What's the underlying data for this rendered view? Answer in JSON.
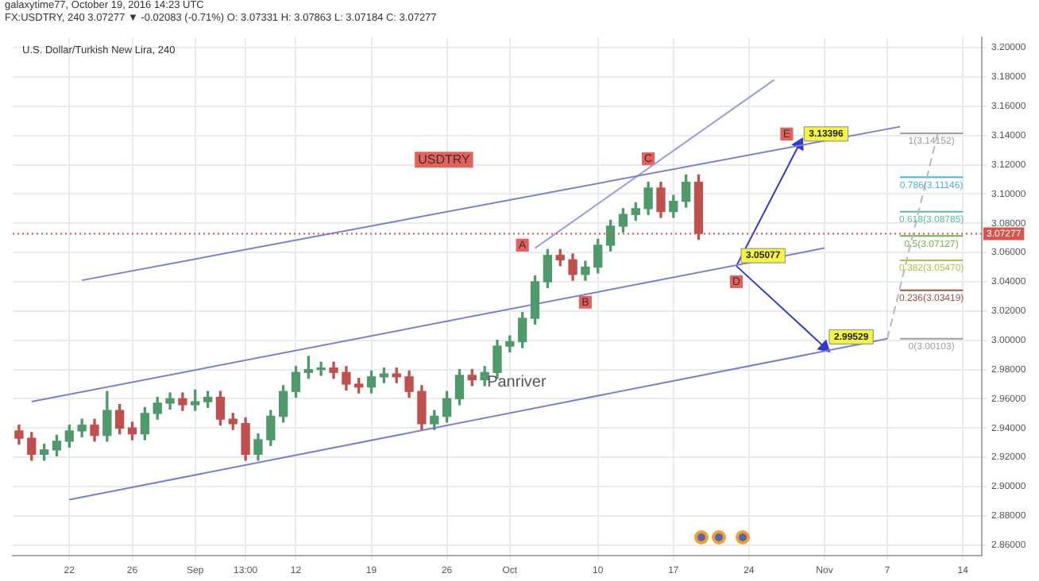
{
  "chart_data": {
    "type": "candlestick",
    "title": "U.S. Dollar/Turkish New Lira, 240",
    "subtitle": "USDTRY",
    "annotations": [
      "galaxytime77, October 19, 2016 14:23 UTC",
      "FX:USDTRY, 240 3.07277 ▼ -0.02083 (-0.71%) O: 3.07331 H: 3.07863 L: 3.07184 C: 3.07277",
      "Panriver"
    ],
    "categories": [
      null,
      null,
      null,
      null,
      "22",
      null,
      null,
      null,
      null,
      "26",
      null,
      null,
      null,
      null,
      "Sep",
      null,
      null,
      null,
      "13:00",
      null,
      null,
      null,
      "12",
      null,
      null,
      null,
      null,
      null,
      "19",
      null,
      null,
      null,
      null,
      null,
      "26",
      null,
      null,
      null,
      null,
      "Oct",
      null,
      null,
      null,
      null,
      null,
      null,
      "10",
      null,
      null,
      null,
      null,
      null,
      "17",
      null,
      null,
      null,
      null,
      null,
      "24",
      null,
      null,
      null,
      null,
      null,
      "Nov",
      null,
      null,
      null,
      null,
      "7",
      null,
      null,
      null,
      null,
      null,
      "14",
      null
    ],
    "ohlc": [
      [
        2.938,
        2.942,
        2.929,
        2.933
      ],
      [
        2.933,
        2.937,
        2.918,
        2.922
      ],
      [
        2.922,
        2.929,
        2.918,
        2.925
      ],
      [
        2.925,
        2.935,
        2.921,
        2.931
      ],
      [
        2.931,
        2.942,
        2.927,
        2.938
      ],
      [
        2.938,
        2.946,
        2.934,
        2.942
      ],
      [
        2.942,
        2.946,
        2.931,
        2.935
      ],
      [
        2.935,
        2.965,
        2.931,
        2.952
      ],
      [
        2.952,
        2.956,
        2.936,
        2.94
      ],
      [
        2.94,
        2.944,
        2.932,
        2.936
      ],
      [
        2.936,
        2.954,
        2.932,
        2.95
      ],
      [
        2.95,
        2.961,
        2.946,
        2.957
      ],
      [
        2.957,
        2.964,
        2.953,
        2.96
      ],
      [
        2.96,
        2.964,
        2.952,
        2.956
      ],
      [
        2.956,
        2.966,
        2.952,
        2.958
      ],
      [
        2.958,
        2.965,
        2.954,
        2.961
      ],
      [
        2.961,
        2.965,
        2.942,
        2.946
      ],
      [
        2.946,
        2.95,
        2.939,
        2.943
      ],
      [
        2.943,
        2.947,
        2.918,
        2.922
      ],
      [
        2.922,
        2.936,
        2.918,
        2.932
      ],
      [
        2.932,
        2.952,
        2.928,
        2.948
      ],
      [
        2.948,
        2.969,
        2.944,
        2.965
      ],
      [
        2.965,
        2.982,
        2.961,
        2.978
      ],
      [
        2.978,
        2.989,
        2.974,
        2.98
      ],
      [
        2.98,
        2.985,
        2.976,
        2.981
      ],
      [
        2.981,
        2.985,
        2.974,
        2.978
      ],
      [
        2.978,
        2.982,
        2.966,
        2.97
      ],
      [
        2.97,
        2.974,
        2.964,
        2.968
      ],
      [
        2.968,
        2.979,
        2.964,
        2.975
      ],
      [
        2.975,
        2.981,
        2.971,
        2.977
      ],
      [
        2.977,
        2.981,
        2.971,
        2.975
      ],
      [
        2.975,
        2.979,
        2.961,
        2.965
      ],
      [
        2.965,
        2.969,
        2.939,
        2.943
      ],
      [
        2.943,
        2.952,
        2.939,
        2.948
      ],
      [
        2.948,
        2.965,
        2.944,
        2.96
      ],
      [
        2.96,
        2.98,
        2.956,
        2.976
      ],
      [
        2.976,
        2.98,
        2.969,
        2.973
      ],
      [
        2.973,
        2.982,
        2.969,
        2.978
      ],
      [
        2.978,
        3.0,
        2.974,
        2.996
      ],
      [
        2.996,
        3.003,
        2.992,
        2.999
      ],
      [
        2.999,
        3.019,
        2.995,
        3.015
      ],
      [
        3.015,
        3.044,
        3.011,
        3.04
      ],
      [
        3.04,
        3.062,
        3.036,
        3.058
      ],
      [
        3.058,
        3.062,
        3.051,
        3.055
      ],
      [
        3.055,
        3.059,
        3.041,
        3.045
      ],
      [
        3.045,
        3.054,
        3.041,
        3.05
      ],
      [
        3.05,
        3.069,
        3.046,
        3.065
      ],
      [
        3.065,
        3.082,
        3.061,
        3.078
      ],
      [
        3.078,
        3.09,
        3.074,
        3.086
      ],
      [
        3.086,
        3.094,
        3.082,
        3.09
      ],
      [
        3.09,
        3.108,
        3.086,
        3.104
      ],
      [
        3.104,
        3.108,
        3.084,
        3.088
      ],
      [
        3.088,
        3.099,
        3.084,
        3.095
      ],
      [
        3.095,
        3.113,
        3.091,
        3.108
      ],
      [
        3.108,
        3.113,
        3.069,
        3.073
      ],
      null,
      null,
      null,
      null,
      null,
      null,
      null,
      null,
      null,
      null,
      null,
      null,
      null,
      null,
      null,
      null,
      null,
      null,
      null,
      null,
      null,
      null
    ],
    "colors": [
      "#c0504d",
      "#c0504d",
      "#4e9a6a",
      "#4e9a6a",
      "#4e9a6a",
      "#4e9a6a",
      "#c0504d",
      "#4e9a6a",
      "#c0504d",
      "#c0504d",
      "#4e9a6a",
      "#4e9a6a",
      "#4e9a6a",
      "#c0504d",
      "#4e9a6a",
      "#4e9a6a",
      "#c0504d",
      "#c0504d",
      "#c0504d",
      "#4e9a6a",
      "#4e9a6a",
      "#4e9a6a",
      "#4e9a6a",
      "#4e9a6a",
      "#4e9a6a",
      "#c0504d",
      "#c0504d",
      "#c0504d",
      "#4e9a6a",
      "#4e9a6a",
      "#c0504d",
      "#c0504d",
      "#c0504d",
      "#4e9a6a",
      "#4e9a6a",
      "#4e9a6a",
      "#c0504d",
      "#4e9a6a",
      "#4e9a6a",
      "#4e9a6a",
      "#4e9a6a",
      "#4e9a6a",
      "#4e9a6a",
      "#c0504d",
      "#c0504d",
      "#4e9a6a",
      "#4e9a6a",
      "#4e9a6a",
      "#4e9a6a",
      "#4e9a6a",
      "#4e9a6a",
      "#c0504d",
      "#4e9a6a",
      "#4e9a6a",
      "#c0504d",
      null,
      null,
      null,
      null,
      null,
      null,
      null,
      null,
      null,
      null,
      null,
      null,
      null,
      null,
      null,
      null,
      null,
      null,
      null,
      null,
      null,
      null
    ],
    "series": [
      {
        "type": "line",
        "color": "#7b7fd6",
        "values": [
          null,
          null,
          null,
          null,
          null,
          3.041,
          null,
          null,
          null,
          null,
          null,
          null,
          null,
          null,
          null,
          null,
          null,
          null,
          null,
          null,
          null,
          null,
          null,
          null,
          null,
          null,
          null,
          null,
          null,
          null,
          null,
          null,
          null,
          null,
          null,
          null,
          null,
          null,
          null,
          null,
          null,
          null,
          null,
          null,
          null,
          null,
          null,
          null,
          null,
          null,
          null,
          null,
          null,
          null,
          null,
          null,
          null,
          null,
          null,
          null,
          null,
          null,
          null,
          null,
          null,
          null,
          null,
          null,
          null,
          null,
          3.146,
          null,
          null,
          null,
          null,
          null,
          null
        ]
      },
      {
        "type": "line",
        "color": "#7b7fd6",
        "values": [
          null,
          2.958,
          null,
          null,
          null,
          null,
          null,
          null,
          null,
          null,
          null,
          null,
          null,
          null,
          null,
          null,
          null,
          null,
          null,
          null,
          null,
          null,
          null,
          null,
          null,
          null,
          null,
          null,
          null,
          null,
          null,
          null,
          null,
          null,
          null,
          null,
          null,
          null,
          null,
          null,
          null,
          null,
          null,
          null,
          null,
          null,
          null,
          null,
          null,
          null,
          null,
          null,
          null,
          null,
          null,
          null,
          null,
          null,
          null,
          null,
          null,
          null,
          null,
          null,
          3.063,
          null,
          null,
          null,
          null,
          null,
          null,
          null,
          null,
          null,
          null,
          null,
          null
        ]
      },
      {
        "type": "line",
        "color": "#7b7fd6",
        "values": [
          null,
          null,
          null,
          null,
          2.891,
          null,
          null,
          null,
          null,
          null,
          null,
          null,
          null,
          null,
          null,
          null,
          null,
          null,
          null,
          null,
          null,
          null,
          null,
          null,
          null,
          null,
          null,
          null,
          null,
          null,
          null,
          null,
          null,
          null,
          null,
          null,
          null,
          null,
          null,
          null,
          null,
          null,
          null,
          null,
          null,
          null,
          null,
          null,
          null,
          null,
          null,
          null,
          null,
          null,
          null,
          null,
          null,
          null,
          null,
          null,
          null,
          null,
          null,
          null,
          null,
          null,
          null,
          null,
          null,
          3.001,
          null,
          null,
          null,
          null,
          null,
          null,
          null
        ]
      },
      {
        "type": "line",
        "color": "#9a9ee0",
        "values": [
          null,
          null,
          null,
          null,
          null,
          null,
          null,
          null,
          null,
          null,
          null,
          null,
          null,
          null,
          null,
          null,
          null,
          null,
          null,
          null,
          null,
          null,
          null,
          null,
          null,
          null,
          null,
          null,
          null,
          null,
          null,
          null,
          null,
          null,
          null,
          null,
          null,
          null,
          null,
          null,
          null,
          3.063,
          null,
          null,
          null,
          null,
          null,
          null,
          null,
          null,
          null,
          null,
          null,
          null,
          null,
          null,
          null,
          null,
          null,
          null,
          3.178,
          null,
          null,
          null,
          null,
          null,
          null,
          null,
          null,
          null,
          null,
          null,
          null,
          null,
          null,
          null,
          null
        ]
      },
      {
        "type": "line",
        "color": "#2f3bd0",
        "marker": "triangle",
        "values": [
          null,
          null,
          null,
          null,
          null,
          null,
          null,
          null,
          null,
          null,
          null,
          null,
          null,
          null,
          null,
          null,
          null,
          null,
          null,
          null,
          null,
          null,
          null,
          null,
          null,
          null,
          null,
          null,
          null,
          null,
          null,
          null,
          null,
          null,
          null,
          null,
          null,
          null,
          null,
          null,
          null,
          null,
          null,
          null,
          null,
          null,
          null,
          null,
          null,
          null,
          null,
          null,
          null,
          null,
          null,
          null,
          null,
          3.05077,
          null,
          null,
          null,
          null,
          3.13396,
          null,
          null,
          null,
          null,
          null,
          null,
          null,
          null,
          null,
          null,
          null,
          null,
          null,
          null
        ],
        "value_labels": [
          null,
          null,
          null,
          null,
          null,
          null,
          null,
          null,
          null,
          null,
          null,
          null,
          null,
          null,
          null,
          null,
          null,
          null,
          null,
          null,
          null,
          null,
          null,
          null,
          null,
          null,
          null,
          null,
          null,
          null,
          null,
          null,
          null,
          null,
          null,
          null,
          null,
          null,
          null,
          null,
          null,
          null,
          null,
          null,
          null,
          null,
          null,
          null,
          null,
          null,
          null,
          null,
          null,
          null,
          null,
          null,
          null,
          "3.05077",
          null,
          null,
          null,
          null,
          "3.13396",
          null,
          null,
          null,
          null,
          null,
          null,
          null,
          null,
          null,
          null,
          null,
          null,
          null,
          null
        ]
      },
      {
        "type": "line",
        "color": "#2f3bd0",
        "marker": "triangle",
        "values": [
          null,
          null,
          null,
          null,
          null,
          null,
          null,
          null,
          null,
          null,
          null,
          null,
          null,
          null,
          null,
          null,
          null,
          null,
          null,
          null,
          null,
          null,
          null,
          null,
          null,
          null,
          null,
          null,
          null,
          null,
          null,
          null,
          null,
          null,
          null,
          null,
          null,
          null,
          null,
          null,
          null,
          null,
          null,
          null,
          null,
          null,
          null,
          null,
          null,
          null,
          null,
          null,
          null,
          null,
          null,
          null,
          null,
          3.05077,
          null,
          null,
          null,
          null,
          null,
          null,
          2.99529,
          null,
          null,
          null,
          null,
          null,
          null,
          null,
          null,
          null,
          null,
          null,
          null
        ],
        "value_labels": [
          null,
          null,
          null,
          null,
          null,
          null,
          null,
          null,
          null,
          null,
          null,
          null,
          null,
          null,
          null,
          null,
          null,
          null,
          null,
          null,
          null,
          null,
          null,
          null,
          null,
          null,
          null,
          null,
          null,
          null,
          null,
          null,
          null,
          null,
          null,
          null,
          null,
          null,
          null,
          null,
          null,
          null,
          null,
          null,
          null,
          null,
          null,
          null,
          null,
          null,
          null,
          null,
          null,
          null,
          null,
          null,
          null,
          null,
          null,
          null,
          null,
          null,
          null,
          null,
          "2.99529",
          null,
          null,
          null,
          null,
          null,
          null,
          null,
          null,
          null,
          null,
          null,
          null
        ]
      },
      {
        "type": "line",
        "color": "#b8b8b8",
        "line_style": "dashed",
        "values": [
          null,
          null,
          null,
          null,
          null,
          null,
          null,
          null,
          null,
          null,
          null,
          null,
          null,
          null,
          null,
          null,
          null,
          null,
          null,
          null,
          null,
          null,
          null,
          null,
          null,
          null,
          null,
          null,
          null,
          null,
          null,
          null,
          null,
          null,
          null,
          null,
          null,
          null,
          null,
          null,
          null,
          null,
          null,
          null,
          null,
          null,
          null,
          null,
          null,
          null,
          null,
          null,
          null,
          null,
          null,
          null,
          null,
          null,
          null,
          null,
          null,
          null,
          null,
          null,
          null,
          null,
          null,
          null,
          null,
          3.00103,
          null,
          null,
          null,
          3.14152,
          null,
          null,
          null
        ]
      },
      {
        "type": "line",
        "name": "1(3.14152)",
        "color": "#9e9e9e",
        "values": [
          null,
          null,
          null,
          null,
          null,
          null,
          null,
          null,
          null,
          null,
          null,
          null,
          null,
          null,
          null,
          null,
          null,
          null,
          null,
          null,
          null,
          null,
          null,
          null,
          null,
          null,
          null,
          null,
          null,
          null,
          null,
          null,
          null,
          null,
          null,
          null,
          null,
          null,
          null,
          null,
          null,
          null,
          null,
          null,
          null,
          null,
          null,
          null,
          null,
          null,
          null,
          null,
          null,
          null,
          null,
          null,
          null,
          null,
          null,
          null,
          null,
          null,
          null,
          null,
          null,
          null,
          null,
          null,
          null,
          null,
          3.14152,
          null,
          null,
          null,
          null,
          3.14152,
          null
        ]
      },
      {
        "type": "line",
        "name": "0.786(3.11146)",
        "color": "#4fb3d0",
        "values": [
          null,
          null,
          null,
          null,
          null,
          null,
          null,
          null,
          null,
          null,
          null,
          null,
          null,
          null,
          null,
          null,
          null,
          null,
          null,
          null,
          null,
          null,
          null,
          null,
          null,
          null,
          null,
          null,
          null,
          null,
          null,
          null,
          null,
          null,
          null,
          null,
          null,
          null,
          null,
          null,
          null,
          null,
          null,
          null,
          null,
          null,
          null,
          null,
          null,
          null,
          null,
          null,
          null,
          null,
          null,
          null,
          null,
          null,
          null,
          null,
          null,
          null,
          null,
          null,
          null,
          null,
          null,
          null,
          null,
          null,
          3.11146,
          null,
          null,
          null,
          null,
          3.11146,
          null
        ]
      },
      {
        "type": "line",
        "name": "0.618(3.08785)",
        "color": "#5cb8a0",
        "values": [
          null,
          null,
          null,
          null,
          null,
          null,
          null,
          null,
          null,
          null,
          null,
          null,
          null,
          null,
          null,
          null,
          null,
          null,
          null,
          null,
          null,
          null,
          null,
          null,
          null,
          null,
          null,
          null,
          null,
          null,
          null,
          null,
          null,
          null,
          null,
          null,
          null,
          null,
          null,
          null,
          null,
          null,
          null,
          null,
          null,
          null,
          null,
          null,
          null,
          null,
          null,
          null,
          null,
          null,
          null,
          null,
          null,
          null,
          null,
          null,
          null,
          null,
          null,
          null,
          null,
          null,
          null,
          null,
          null,
          null,
          3.08785,
          null,
          null,
          null,
          null,
          3.08785,
          null
        ]
      },
      {
        "type": "line",
        "name": "0.5(3.07127)",
        "color": "#73b04a",
        "values": [
          null,
          null,
          null,
          null,
          null,
          null,
          null,
          null,
          null,
          null,
          null,
          null,
          null,
          null,
          null,
          null,
          null,
          null,
          null,
          null,
          null,
          null,
          null,
          null,
          null,
          null,
          null,
          null,
          null,
          null,
          null,
          null,
          null,
          null,
          null,
          null,
          null,
          null,
          null,
          null,
          null,
          null,
          null,
          null,
          null,
          null,
          null,
          null,
          null,
          null,
          null,
          null,
          null,
          null,
          null,
          null,
          null,
          null,
          null,
          null,
          null,
          null,
          null,
          null,
          null,
          null,
          null,
          null,
          null,
          null,
          3.07127,
          null,
          null,
          null,
          null,
          3.07127,
          null
        ]
      },
      {
        "type": "line",
        "name": "0.382(3.05470)",
        "color": "#b5bd4a",
        "values": [
          null,
          null,
          null,
          null,
          null,
          null,
          null,
          null,
          null,
          null,
          null,
          null,
          null,
          null,
          null,
          null,
          null,
          null,
          null,
          null,
          null,
          null,
          null,
          null,
          null,
          null,
          null,
          null,
          null,
          null,
          null,
          null,
          null,
          null,
          null,
          null,
          null,
          null,
          null,
          null,
          null,
          null,
          null,
          null,
          null,
          null,
          null,
          null,
          null,
          null,
          null,
          null,
          null,
          null,
          null,
          null,
          null,
          null,
          null,
          null,
          null,
          null,
          null,
          null,
          null,
          null,
          null,
          null,
          null,
          null,
          3.0547,
          null,
          null,
          null,
          null,
          3.0547,
          null
        ]
      },
      {
        "type": "line",
        "name": "0.236(3.03419)",
        "color": "#a0523f",
        "values": [
          null,
          null,
          null,
          null,
          null,
          null,
          null,
          null,
          null,
          null,
          null,
          null,
          null,
          null,
          null,
          null,
          null,
          null,
          null,
          null,
          null,
          null,
          null,
          null,
          null,
          null,
          null,
          null,
          null,
          null,
          null,
          null,
          null,
          null,
          null,
          null,
          null,
          null,
          null,
          null,
          null,
          null,
          null,
          null,
          null,
          null,
          null,
          null,
          null,
          null,
          null,
          null,
          null,
          null,
          null,
          null,
          null,
          null,
          null,
          null,
          null,
          null,
          null,
          null,
          null,
          null,
          null,
          null,
          null,
          null,
          3.03419,
          null,
          null,
          null,
          null,
          3.03419,
          null
        ]
      },
      {
        "type": "line",
        "name": "0(3.00103)",
        "color": "#9e9e9e",
        "values": [
          null,
          null,
          null,
          null,
          null,
          null,
          null,
          null,
          null,
          null,
          null,
          null,
          null,
          null,
          null,
          null,
          null,
          null,
          null,
          null,
          null,
          null,
          null,
          null,
          null,
          null,
          null,
          null,
          null,
          null,
          null,
          null,
          null,
          null,
          null,
          null,
          null,
          null,
          null,
          null,
          null,
          null,
          null,
          null,
          null,
          null,
          null,
          null,
          null,
          null,
          null,
          null,
          null,
          null,
          null,
          null,
          null,
          null,
          null,
          null,
          null,
          null,
          null,
          null,
          null,
          null,
          null,
          null,
          null,
          null,
          3.00103,
          null,
          null,
          null,
          null,
          3.00103,
          null
        ]
      },
      {
        "type": "scatter",
        "color": "#e8605c",
        "marker": "square",
        "values": [
          null,
          null,
          null,
          null,
          null,
          null,
          null,
          null,
          null,
          null,
          null,
          null,
          null,
          null,
          null,
          null,
          null,
          null,
          null,
          null,
          null,
          null,
          null,
          null,
          null,
          null,
          null,
          null,
          null,
          null,
          null,
          null,
          null,
          null,
          null,
          null,
          null,
          null,
          null,
          null,
          3.065,
          null,
          null,
          null,
          null,
          3.026,
          null,
          null,
          null,
          null,
          3.124,
          null,
          null,
          null,
          null,
          null,
          null,
          3.04,
          null,
          null,
          null,
          3.141,
          null,
          null,
          null,
          null,
          null,
          null,
          null,
          null,
          null,
          null,
          null,
          null,
          null,
          null,
          null
        ],
        "value_labels": [
          null,
          null,
          null,
          null,
          null,
          null,
          null,
          null,
          null,
          null,
          null,
          null,
          null,
          null,
          null,
          null,
          null,
          null,
          null,
          null,
          null,
          null,
          null,
          null,
          null,
          null,
          null,
          null,
          null,
          null,
          null,
          null,
          null,
          null,
          null,
          null,
          null,
          null,
          null,
          null,
          "A",
          null,
          null,
          null,
          null,
          "B",
          null,
          null,
          null,
          null,
          "C",
          null,
          null,
          null,
          null,
          null,
          null,
          "D",
          null,
          null,
          null,
          "E",
          null,
          null,
          null,
          null,
          null,
          null,
          null,
          null,
          null,
          null,
          null,
          null,
          null,
          null,
          null
        ]
      }
    ],
    "ref_lines": [
      {
        "axis": "y",
        "value": 3.07277,
        "label": "3.07277",
        "color": "#d9534f",
        "line_style": "dotted"
      }
    ],
    "ylim": [
      2.853,
      3.207
    ],
    "yticks": [
      {
        "value": 2.86,
        "label": "2.86000"
      },
      {
        "value": 2.88,
        "label": "2.88000"
      },
      {
        "value": 2.9,
        "label": "2.90000"
      },
      {
        "value": 2.92,
        "label": "2.92000"
      },
      {
        "value": 2.94,
        "label": "2.94000"
      },
      {
        "value": 2.96,
        "label": "2.96000"
      },
      {
        "value": 2.98,
        "label": "2.98000"
      },
      {
        "value": 3.0,
        "label": "3.00000"
      },
      {
        "value": 3.02,
        "label": "3.02000"
      },
      {
        "value": 3.04,
        "label": "3.04000"
      },
      {
        "value": 3.06,
        "label": "3.06000"
      },
      {
        "value": 3.08,
        "label": "3.08000"
      },
      {
        "value": 3.1,
        "label": "3.10000"
      },
      {
        "value": 3.12,
        "label": "3.12000"
      },
      {
        "value": 3.14,
        "label": "3.14000"
      },
      {
        "value": 3.16,
        "label": "3.16000"
      },
      {
        "value": 3.18,
        "label": "3.18000"
      },
      {
        "value": 3.2,
        "label": "3.20000"
      }
    ],
    "grid": true,
    "legend": false
  }
}
